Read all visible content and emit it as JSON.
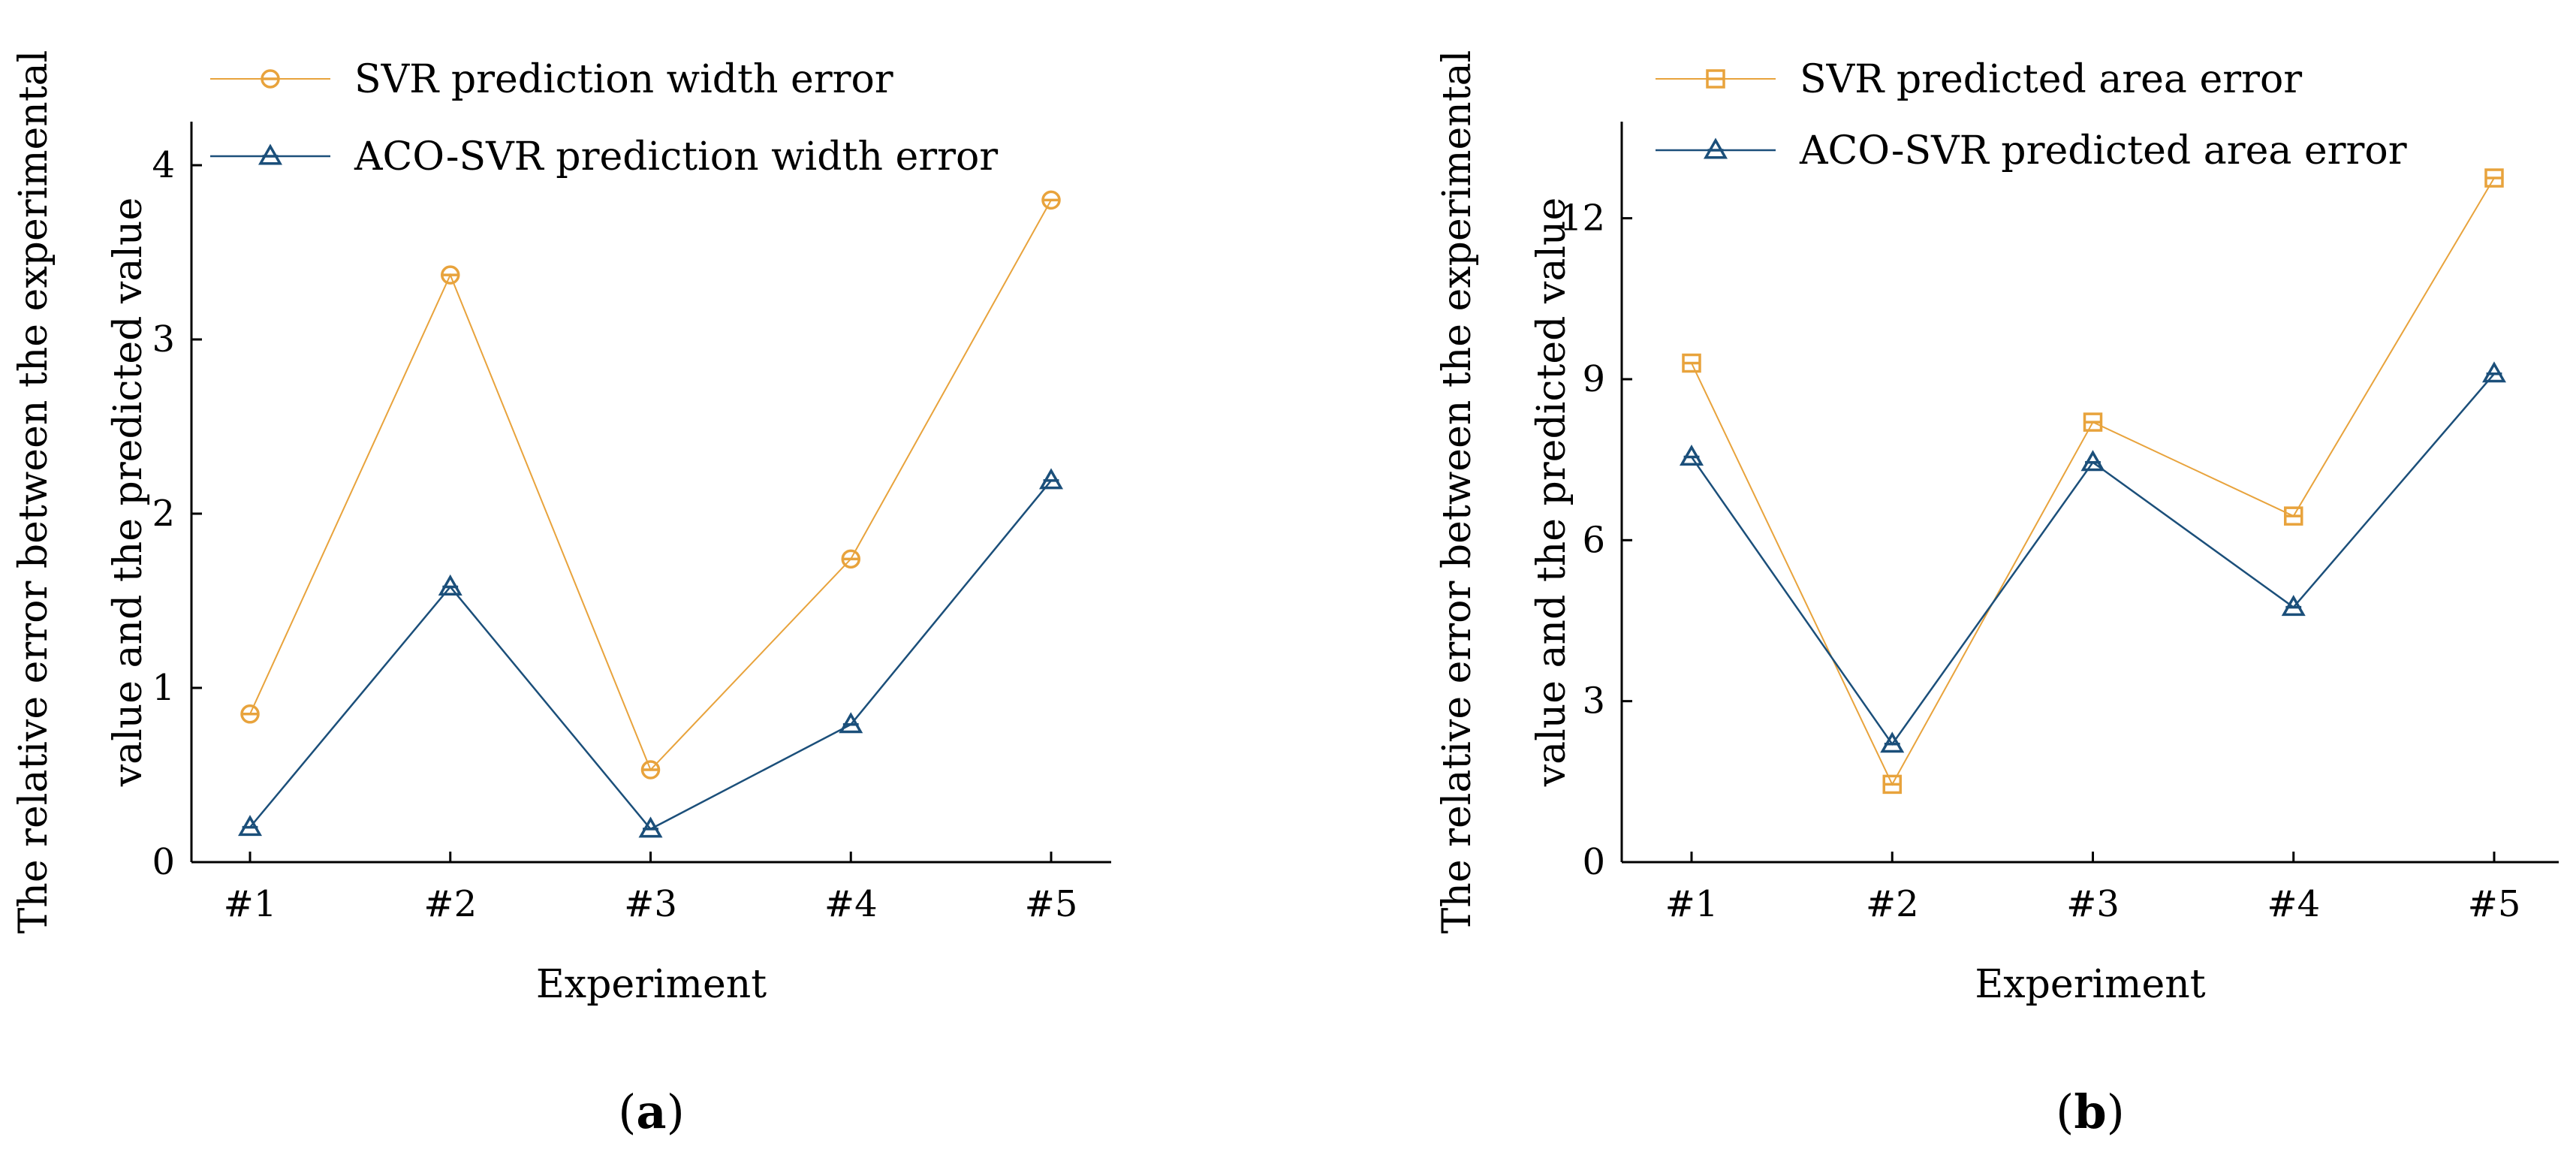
{
  "chart_data": [
    {
      "type": "line",
      "panel_label_open": "(",
      "panel_label": "a",
      "panel_label_close": ")",
      "xlabel": "Experiment",
      "ylabel_line1": "The relative error between the experimental",
      "ylabel_line2": "value and the predicted value",
      "categories": [
        "#1",
        "#2",
        "#3",
        "#4",
        "#5"
      ],
      "ylim": [
        0,
        4.25
      ],
      "yticks": [
        0,
        1,
        2,
        3,
        4
      ],
      "series": [
        {
          "name": "SVR prediction width error",
          "marker": "circle",
          "color": "#e8a33c",
          "values": [
            0.85,
            3.37,
            0.53,
            1.74,
            3.8
          ]
        },
        {
          "name": "ACO-SVR prediction width error",
          "marker": "triangle",
          "color": "#1b4f7a",
          "values": [
            0.2,
            1.58,
            0.19,
            0.79,
            2.19
          ]
        }
      ]
    },
    {
      "type": "line",
      "panel_label_open": "(",
      "panel_label": "b",
      "panel_label_close": ")",
      "xlabel": "Experiment",
      "ylabel_line1": "The relative error between the experimental",
      "ylabel_line2": "value and the predicted value",
      "categories": [
        "#1",
        "#2",
        "#3",
        "#4",
        "#5"
      ],
      "ylim": [
        0,
        13.8
      ],
      "yticks": [
        0,
        3,
        6,
        9,
        12
      ],
      "series": [
        {
          "name": "SVR predicted area error",
          "marker": "square",
          "color": "#e8a33c",
          "values": [
            9.3,
            1.45,
            8.2,
            6.45,
            12.75
          ]
        },
        {
          "name": "ACO-SVR predicted area error",
          "marker": "triangle",
          "color": "#1b4f7a",
          "values": [
            7.55,
            2.2,
            7.45,
            4.75,
            9.1
          ]
        }
      ]
    }
  ]
}
